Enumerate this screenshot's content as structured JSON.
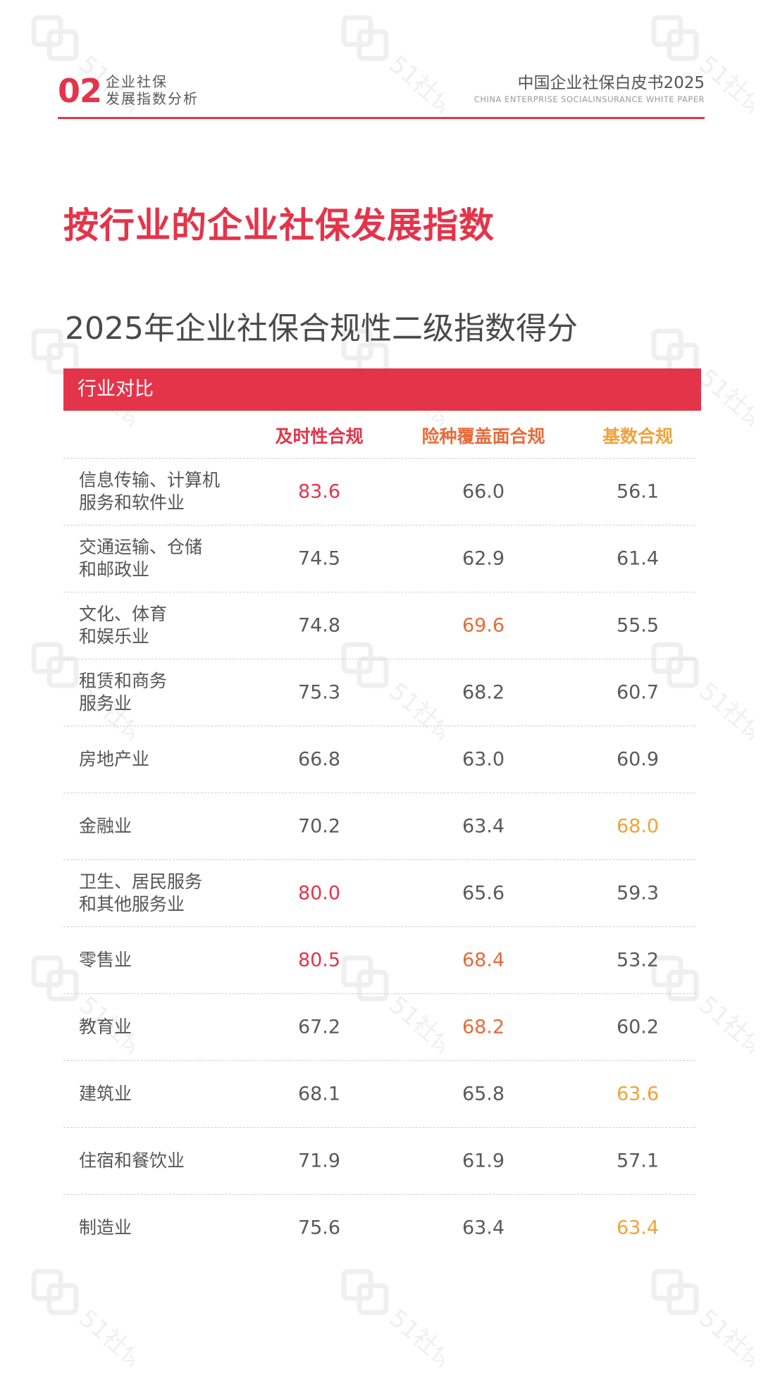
{
  "header": {
    "section_number": "02",
    "section_title_line1": "企业社保",
    "section_title_line2": "发展指数分析",
    "whitepaper_title": "中国企业社保白皮书2025",
    "whitepaper_subtitle": "CHINA ENTERPRISE SOCIALINSURANCE WHITE PAPER"
  },
  "main_title": "按行业的企业社保发展指数",
  "sub_title": "2025年企业社保合规性二级指数得分",
  "table": {
    "band_label": "行业对比",
    "columns": [
      "及时性合规",
      "险种覆盖面合规",
      "基数合规"
    ],
    "column_colors": [
      "#e4344a",
      "#ea6a3a",
      "#f0a23a"
    ],
    "rows": [
      {
        "industry": "信息传输、计算机\n服务和软件业",
        "values": [
          "83.6",
          "66.0",
          "56.1"
        ],
        "hl": [
          "red",
          "",
          ""
        ]
      },
      {
        "industry": "交通运输、仓储\n和邮政业",
        "values": [
          "74.5",
          "62.9",
          "61.4"
        ],
        "hl": [
          "",
          "",
          ""
        ]
      },
      {
        "industry": "文化、体育\n和娱乐业",
        "values": [
          "74.8",
          "69.6",
          "55.5"
        ],
        "hl": [
          "",
          "orange",
          ""
        ]
      },
      {
        "industry": "租赁和商务\n服务业",
        "values": [
          "75.3",
          "68.2",
          "60.7"
        ],
        "hl": [
          "",
          "",
          ""
        ]
      },
      {
        "industry": "房地产业",
        "values": [
          "66.8",
          "63.0",
          "60.9"
        ],
        "hl": [
          "",
          "",
          ""
        ]
      },
      {
        "industry": "金融业",
        "values": [
          "70.2",
          "63.4",
          "68.0"
        ],
        "hl": [
          "",
          "",
          "yellow"
        ]
      },
      {
        "industry": "卫生、居民服务\n和其他服务业",
        "values": [
          "80.0",
          "65.6",
          "59.3"
        ],
        "hl": [
          "red",
          "",
          ""
        ]
      },
      {
        "industry": "零售业",
        "values": [
          "80.5",
          "68.4",
          "53.2"
        ],
        "hl": [
          "red",
          "orange",
          ""
        ]
      },
      {
        "industry": "教育业",
        "values": [
          "67.2",
          "68.2",
          "60.2"
        ],
        "hl": [
          "",
          "orange",
          ""
        ]
      },
      {
        "industry": "建筑业",
        "values": [
          "68.1",
          "65.8",
          "63.6"
        ],
        "hl": [
          "",
          "",
          "yellow"
        ]
      },
      {
        "industry": "住宿和餐饮业",
        "values": [
          "71.9",
          "61.9",
          "57.1"
        ],
        "hl": [
          "",
          "",
          ""
        ]
      },
      {
        "industry": "制造业",
        "values": [
          "75.6",
          "63.4",
          "63.4"
        ],
        "hl": [
          "",
          "",
          "yellow"
        ]
      }
    ]
  },
  "watermark": {
    "text": "51社保",
    "icon": "51shebao-logo-icon"
  }
}
